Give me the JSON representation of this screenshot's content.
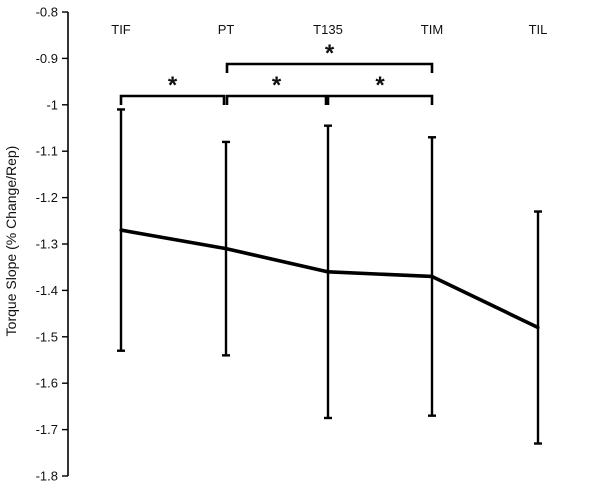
{
  "chart_data": {
    "type": "line",
    "title": "",
    "xlabel": "",
    "ylabel": "Torque Slope (% Change/Rep)",
    "categories": [
      "TIF",
      "PT",
      "T135",
      "TIM",
      "TIL"
    ],
    "series": [
      {
        "values": [
          -1.27,
          -1.31,
          -1.36,
          -1.37,
          -1.48
        ],
        "error_upper": [
          -1.01,
          -1.08,
          -1.045,
          -1.07,
          -1.23
        ],
        "error_lower": [
          -1.53,
          -1.54,
          -1.675,
          -1.67,
          -1.73
        ]
      }
    ],
    "ylim": [
      -1.8,
      -0.8
    ],
    "yticks": [
      "-0.8",
      "-0.9",
      "-1",
      "-1.1",
      "-1.2",
      "-1.3",
      "-1.4",
      "-1.5",
      "-1.6",
      "-1.7",
      "-1.8"
    ],
    "ytick_values": [
      -0.8,
      -0.9,
      -1.0,
      -1.1,
      -1.2,
      -1.3,
      -1.4,
      -1.5,
      -1.6,
      -1.7,
      -1.8
    ],
    "y_axis_inverted": true,
    "category_labels_position": "top",
    "grid": false,
    "legend": "none",
    "significance": [
      {
        "from": "TIF",
        "to": "PT",
        "label": "*"
      },
      {
        "from": "PT",
        "to": "T135",
        "label": "*"
      },
      {
        "from": "T135",
        "to": "TIM",
        "label": "*"
      },
      {
        "from": "PT",
        "to": "TIM",
        "label": "*"
      }
    ],
    "line_color": "#000000"
  }
}
